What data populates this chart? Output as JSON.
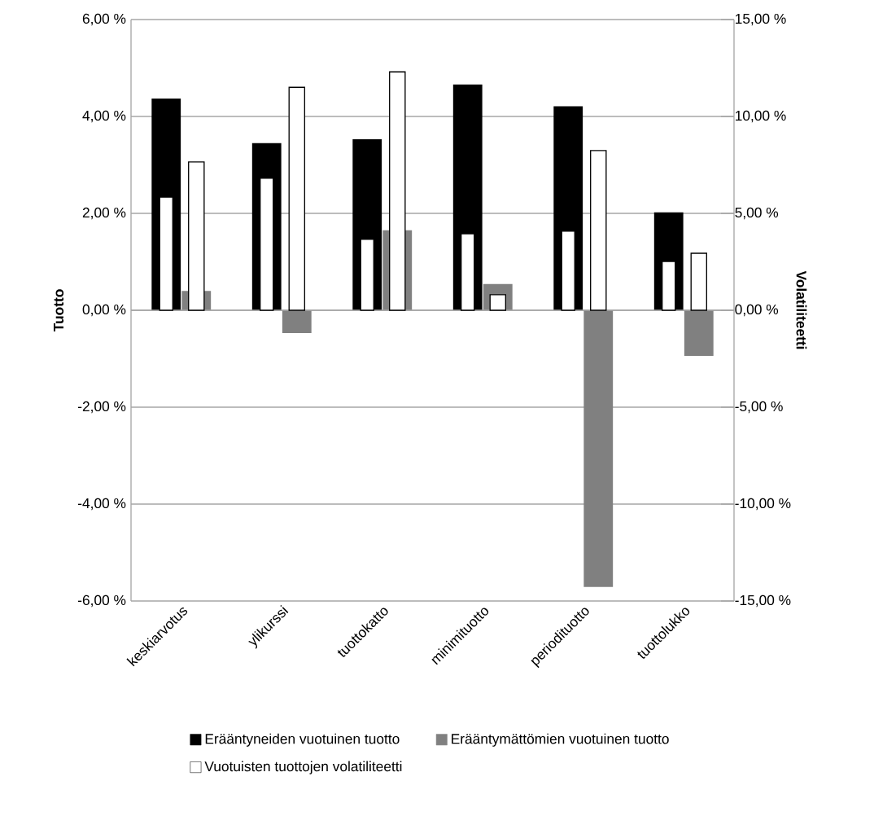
{
  "chart_data": {
    "type": "bar",
    "ylabel": "Tuotto",
    "y2label": "Volatiliteetti",
    "categories": [
      "keskiarvotus",
      "ylikurssi",
      "tuottokatto",
      "minimituotto",
      "periodituotto",
      "tuottolukko"
    ],
    "series": [
      {
        "name": "Erääntyneiden vuotuinen tuotto",
        "color": "#000000",
        "values": [
          4.37,
          3.45,
          3.53,
          4.66,
          4.21,
          2.02
        ]
      },
      {
        "name": "Erääntymättömien vuotuinen tuotto",
        "color": "#808080",
        "values": [
          0.4,
          -0.47,
          1.65,
          0.54,
          -5.71,
          -0.94
        ]
      },
      {
        "color": "#ffffff",
        "axis": "y2",
        "values": [
          5.84,
          6.81,
          3.66,
          3.95,
          4.08,
          2.52
        ]
      },
      {
        "name": "Vuotuisten tuottojen volatiliteetti",
        "color": "#ffffff",
        "axis": "y2",
        "values": [
          7.65,
          11.5,
          12.3,
          0.8,
          8.24,
          2.94
        ]
      }
    ],
    "ylim": [
      -6,
      6
    ],
    "yticks": [
      {
        "value": -6,
        "label": "-6,00 %"
      },
      {
        "value": -4,
        "label": "-4,00 %"
      },
      {
        "value": -2,
        "label": "-2,00 %"
      },
      {
        "value": 0,
        "label": "0,00 %"
      },
      {
        "value": 2,
        "label": "2,00 %"
      },
      {
        "value": 4,
        "label": "4,00 %"
      },
      {
        "value": 6,
        "label": "6,00 %"
      }
    ],
    "y2lim": [
      -15,
      15
    ],
    "y2ticks": [
      {
        "value": -15,
        "label": "-15,00 %"
      },
      {
        "value": -10,
        "label": "-10,00 %"
      },
      {
        "value": -5,
        "label": "-5,00 %"
      },
      {
        "value": 0,
        "label": "0,00 %"
      },
      {
        "value": 5,
        "label": "5,00 %"
      },
      {
        "value": 10,
        "label": "10,00 %"
      },
      {
        "value": 15,
        "label": "15,00 %"
      }
    ],
    "grid": "y",
    "legend": "bottom"
  }
}
